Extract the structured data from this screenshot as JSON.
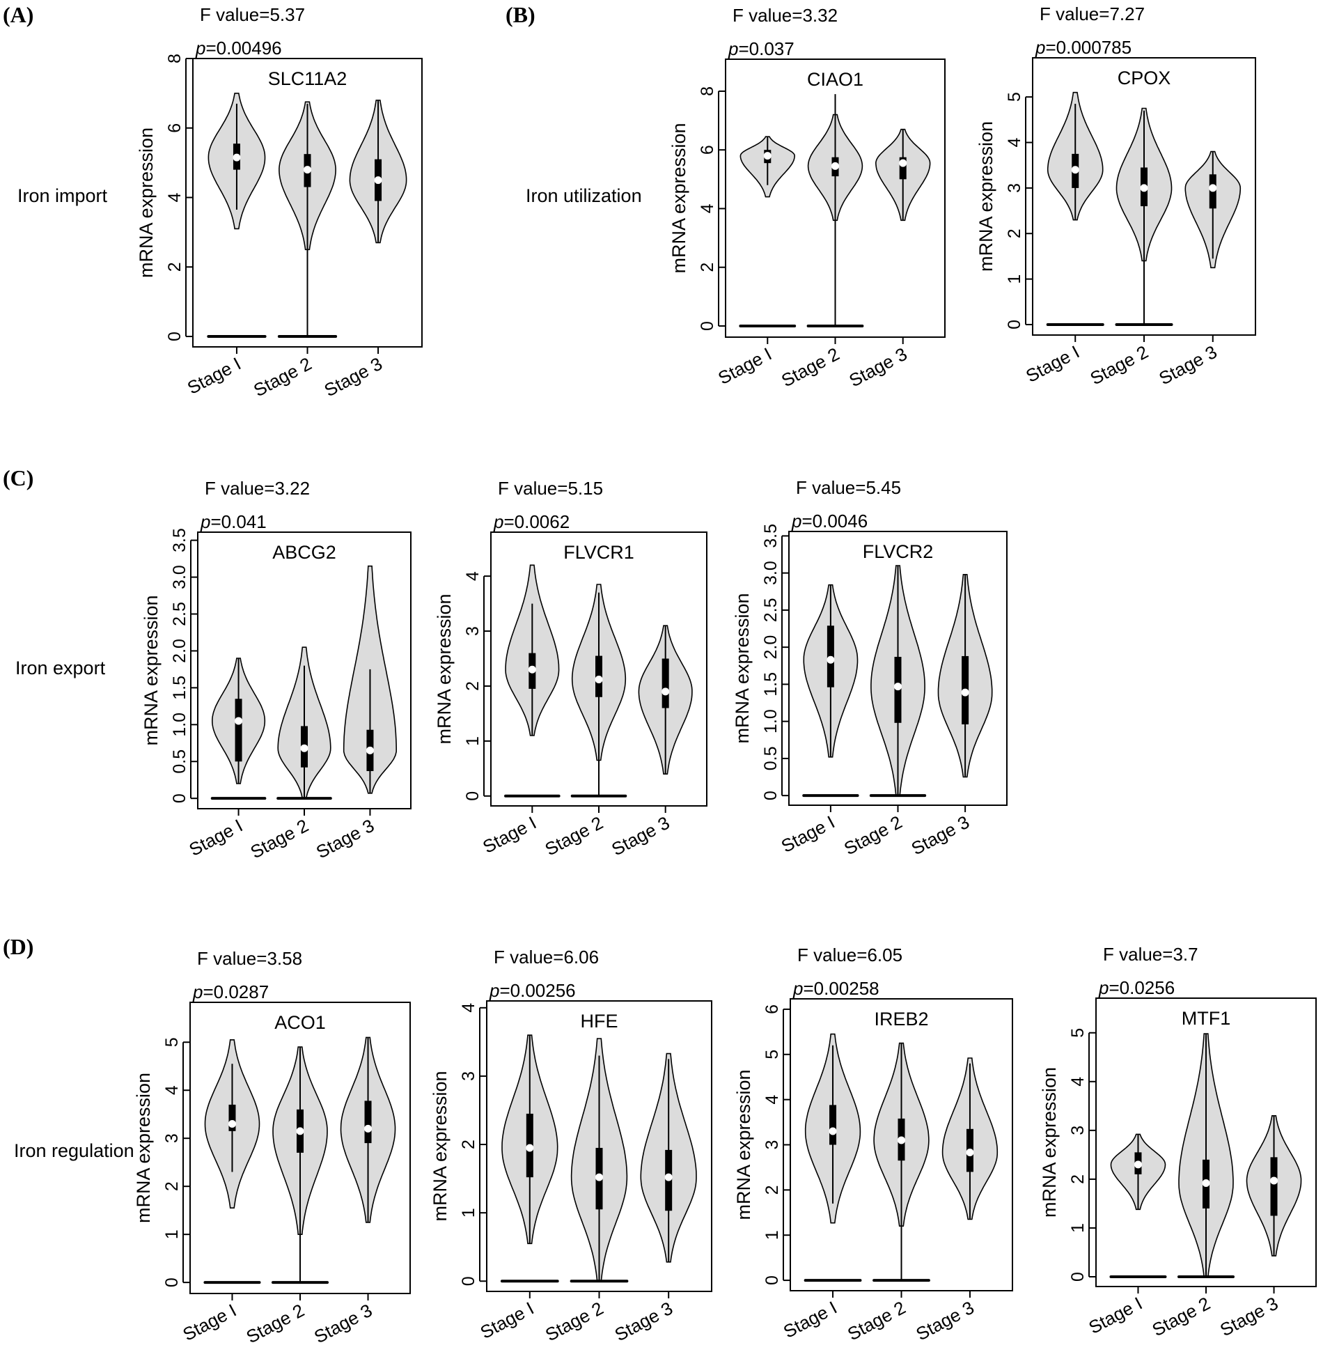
{
  "figure": {
    "panel_letters": [
      "(A)",
      "(B)",
      "(C)",
      "(D)"
    ],
    "row_labels": [
      "Iron import",
      "Iron utilization",
      "Iron export",
      "Iron regulation"
    ],
    "colors": {
      "violin_fill": "#dcdcdc",
      "outline": "#000000",
      "median_dot": "#ffffff"
    }
  },
  "chart_data": [
    {
      "type": "violin",
      "gene": "SLC11A2",
      "f_label": "F value=5.37",
      "p_prefix": "p",
      "p_value": "=0.00496",
      "ylabel": "mRNA expression",
      "categories": [
        "Stage I",
        "Stage 2",
        "Stage 3"
      ],
      "ylim": [
        -0.3,
        8
      ],
      "yticks": [
        "0",
        "2",
        "4",
        "6",
        "8"
      ],
      "violins": [
        {
          "min": 3.1,
          "max": 7.0,
          "q1": 4.8,
          "median": 5.15,
          "q3": 5.55,
          "whisker": [
            3.65,
            6.7
          ],
          "zero_bar": true
        },
        {
          "min": 2.5,
          "max": 6.75,
          "q1": 4.3,
          "median": 4.8,
          "q3": 5.25,
          "whisker": [
            0,
            6.7
          ],
          "zero_bar": true
        },
        {
          "min": 2.7,
          "max": 6.8,
          "q1": 3.9,
          "median": 4.5,
          "q3": 5.1,
          "whisker": [
            2.7,
            6.8
          ],
          "zero_bar": false
        }
      ]
    },
    {
      "type": "violin",
      "gene": "CIAO1",
      "f_label": "F value=3.32",
      "p_prefix": "p",
      "p_value": "=0.037",
      "ylabel": "mRNA expression",
      "categories": [
        "Stage I",
        "Stage 2",
        "Stage 3"
      ],
      "ylim": [
        -0.38,
        9.09
      ],
      "yticks": [
        "0",
        "2",
        "4",
        "6",
        "8"
      ],
      "violins": [
        {
          "min": 4.4,
          "max": 6.45,
          "q1": 5.55,
          "median": 5.8,
          "q3": 6.0,
          "whisker": [
            4.8,
            6.45
          ],
          "zero_bar": true
        },
        {
          "min": 3.6,
          "max": 7.2,
          "q1": 5.1,
          "median": 5.45,
          "q3": 5.75,
          "whisker": [
            0,
            7.9
          ],
          "zero_bar": true
        },
        {
          "min": 3.6,
          "max": 6.7,
          "q1": 5.0,
          "median": 5.55,
          "q3": 5.75,
          "whisker": [
            3.6,
            6.7
          ],
          "zero_bar": false
        }
      ]
    },
    {
      "type": "violin",
      "gene": "CPOX",
      "f_label": "F value=7.27",
      "p_prefix": "p",
      "p_value": "=0.000785",
      "ylabel": "mRNA expression",
      "categories": [
        "Stage I",
        "Stage 2",
        "Stage 3"
      ],
      "ylim": [
        -0.23,
        5.86
      ],
      "yticks": [
        "0",
        "1",
        "2",
        "3",
        "4",
        "5"
      ],
      "violins": [
        {
          "min": 2.3,
          "max": 5.1,
          "q1": 3.0,
          "median": 3.4,
          "q3": 3.75,
          "whisker": [
            2.3,
            4.85
          ],
          "zero_bar": true
        },
        {
          "min": 1.4,
          "max": 4.75,
          "q1": 2.6,
          "median": 3.0,
          "q3": 3.45,
          "whisker": [
            0,
            4.7
          ],
          "zero_bar": true
        },
        {
          "min": 1.25,
          "max": 3.8,
          "q1": 2.55,
          "median": 3.0,
          "q3": 3.3,
          "whisker": [
            1.45,
            3.8
          ],
          "zero_bar": false
        }
      ]
    },
    {
      "type": "violin",
      "gene": "ABCG2",
      "f_label": "F value=3.22",
      "p_prefix": "p",
      "p_value": "=0.041",
      "ylabel": "mRNA expression",
      "categories": [
        "Stage I",
        "Stage 2",
        "Stage 3"
      ],
      "ylim": [
        -0.14,
        3.61
      ],
      "yticks": [
        "0",
        "0.5",
        "1.0",
        "1.5",
        "2.0",
        "2.5",
        "3.0",
        "3.5"
      ],
      "violins": [
        {
          "min": 0.2,
          "max": 1.9,
          "q1": 0.5,
          "median": 1.05,
          "q3": 1.35,
          "whisker": [
            0.2,
            1.9
          ],
          "zero_bar": true
        },
        {
          "min": 0.0,
          "max": 2.05,
          "q1": 0.42,
          "median": 0.68,
          "q3": 0.98,
          "whisker": [
            0,
            1.8
          ],
          "zero_bar": true
        },
        {
          "min": 0.07,
          "max": 3.15,
          "q1": 0.37,
          "median": 0.65,
          "q3": 0.93,
          "whisker": [
            0.07,
            1.75
          ],
          "zero_bar": false
        }
      ]
    },
    {
      "type": "violin",
      "gene": "FLVCR1",
      "f_label": "F value=5.15",
      "p_prefix": "p",
      "p_value": "=0.0062",
      "ylabel": "mRNA expression",
      "categories": [
        "Stage I",
        "Stage 2",
        "Stage 3"
      ],
      "ylim": [
        -0.18,
        4.8
      ],
      "yticks": [
        "0",
        "1",
        "2",
        "3",
        "4"
      ],
      "violins": [
        {
          "min": 1.1,
          "max": 4.2,
          "q1": 1.95,
          "median": 2.3,
          "q3": 2.6,
          "whisker": [
            1.1,
            3.5
          ],
          "zero_bar": true
        },
        {
          "min": 0.65,
          "max": 3.85,
          "q1": 1.8,
          "median": 2.12,
          "q3": 2.55,
          "whisker": [
            0,
            3.7
          ],
          "zero_bar": true
        },
        {
          "min": 0.4,
          "max": 3.1,
          "q1": 1.6,
          "median": 1.9,
          "q3": 2.5,
          "whisker": [
            0.4,
            3.1
          ],
          "zero_bar": false
        }
      ]
    },
    {
      "type": "violin",
      "gene": "FLVCR2",
      "f_label": "F value=5.45",
      "p_prefix": "p",
      "p_value": "=0.0046",
      "ylabel": "mRNA expression",
      "categories": [
        "Stage I",
        "Stage 2",
        "Stage 3"
      ],
      "ylim": [
        -0.13,
        3.56
      ],
      "yticks": [
        "0",
        "0.5",
        "1.0",
        "1.5",
        "2.0",
        "2.5",
        "3.0",
        "3.5"
      ],
      "violins": [
        {
          "min": 0.52,
          "max": 2.84,
          "q1": 1.46,
          "median": 1.83,
          "q3": 2.29,
          "whisker": [
            0.52,
            2.84
          ],
          "zero_bar": true
        },
        {
          "min": 0.0,
          "max": 3.1,
          "q1": 0.98,
          "median": 1.47,
          "q3": 1.87,
          "whisker": [
            0,
            3.1
          ],
          "zero_bar": true
        },
        {
          "min": 0.25,
          "max": 2.98,
          "q1": 0.96,
          "median": 1.39,
          "q3": 1.88,
          "whisker": [
            0.25,
            2.98
          ],
          "zero_bar": false
        }
      ]
    },
    {
      "type": "violin",
      "gene": "ACO1",
      "f_label": "F value=3.58",
      "p_prefix": "p",
      "p_value": "=0.0287",
      "ylabel": "mRNA expression",
      "categories": [
        "Stage I",
        "Stage 2",
        "Stage 3"
      ],
      "ylim": [
        -0.23,
        5.83
      ],
      "yticks": [
        "0",
        "1",
        "2",
        "3",
        "4",
        "5"
      ],
      "violins": [
        {
          "min": 1.55,
          "max": 5.05,
          "q1": 3.15,
          "median": 3.3,
          "q3": 3.7,
          "whisker": [
            2.3,
            4.55
          ],
          "zero_bar": true
        },
        {
          "min": 1.0,
          "max": 4.9,
          "q1": 2.7,
          "median": 3.15,
          "q3": 3.6,
          "whisker": [
            0,
            4.9
          ],
          "zero_bar": true
        },
        {
          "min": 1.25,
          "max": 5.1,
          "q1": 2.9,
          "median": 3.2,
          "q3": 3.78,
          "whisker": [
            1.25,
            5.1
          ],
          "zero_bar": false
        }
      ]
    },
    {
      "type": "violin",
      "gene": "HFE",
      "f_label": "F value=6.06",
      "p_prefix": "p",
      "p_value": "=0.00256",
      "ylabel": "mRNA expression",
      "categories": [
        "Stage I",
        "Stage 2",
        "Stage 3"
      ],
      "ylim": [
        -0.15,
        4.1
      ],
      "yticks": [
        "0",
        "1",
        "2",
        "3",
        "4"
      ],
      "violins": [
        {
          "min": 0.55,
          "max": 3.6,
          "q1": 1.52,
          "median": 1.95,
          "q3": 2.45,
          "whisker": [
            0.55,
            3.6
          ],
          "zero_bar": true
        },
        {
          "min": 0.0,
          "max": 3.55,
          "q1": 1.05,
          "median": 1.52,
          "q3": 1.95,
          "whisker": [
            0,
            3.3
          ],
          "zero_bar": true
        },
        {
          "min": 0.28,
          "max": 3.33,
          "q1": 1.03,
          "median": 1.52,
          "q3": 1.92,
          "whisker": [
            0.28,
            3.25
          ],
          "zero_bar": false
        }
      ]
    },
    {
      "type": "violin",
      "gene": "IREB2",
      "f_label": "F value=6.05",
      "p_prefix": "p",
      "p_value": "=0.00258",
      "ylabel": "mRNA expression",
      "categories": [
        "Stage I",
        "Stage 2",
        "Stage 3"
      ],
      "ylim": [
        -0.23,
        6.23
      ],
      "yticks": [
        "0",
        "1",
        "2",
        "3",
        "4",
        "5",
        "6"
      ],
      "violins": [
        {
          "min": 1.27,
          "max": 5.45,
          "q1": 3.0,
          "median": 3.3,
          "q3": 3.88,
          "whisker": [
            1.7,
            5.2
          ],
          "zero_bar": true
        },
        {
          "min": 1.2,
          "max": 5.25,
          "q1": 2.65,
          "median": 3.1,
          "q3": 3.58,
          "whisker": [
            0,
            5.25
          ],
          "zero_bar": true
        },
        {
          "min": 1.35,
          "max": 4.92,
          "q1": 2.4,
          "median": 2.83,
          "q3": 3.35,
          "whisker": [
            1.35,
            4.8
          ],
          "zero_bar": false
        }
      ]
    },
    {
      "type": "violin",
      "gene": "MTF1",
      "f_label": "F value=3.7",
      "p_prefix": "p",
      "p_value": "=0.0256",
      "ylabel": "mRNA expression",
      "categories": [
        "Stage I",
        "Stage 2",
        "Stage 3"
      ],
      "ylim": [
        -0.2,
        5.71
      ],
      "yticks": [
        "0",
        "1",
        "2",
        "3",
        "4",
        "5"
      ],
      "violins": [
        {
          "min": 1.38,
          "max": 2.92,
          "q1": 2.1,
          "median": 2.3,
          "q3": 2.55,
          "whisker": [
            1.38,
            2.92
          ],
          "zero_bar": true
        },
        {
          "min": 0.0,
          "max": 4.98,
          "q1": 1.4,
          "median": 1.92,
          "q3": 2.4,
          "whisker": [
            0,
            4.98
          ],
          "zero_bar": true
        },
        {
          "min": 0.43,
          "max": 3.3,
          "q1": 1.25,
          "median": 1.97,
          "q3": 2.45,
          "whisker": [
            0.43,
            3.3
          ],
          "zero_bar": false
        }
      ]
    }
  ]
}
